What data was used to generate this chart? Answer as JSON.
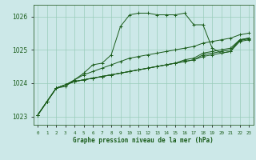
{
  "title": "Graphe pression niveau de la mer (hPa)",
  "xlabel_hours": [
    0,
    1,
    2,
    3,
    4,
    5,
    6,
    7,
    8,
    9,
    10,
    11,
    12,
    13,
    14,
    15,
    16,
    17,
    18,
    19,
    20,
    21,
    22,
    23
  ],
  "ylim": [
    1022.75,
    1026.35
  ],
  "yticks": [
    1023,
    1024,
    1025,
    1026
  ],
  "background_color": "#cce8e8",
  "grid_color": "#99ccbb",
  "line_color": "#1a5c1a",
  "spine_color": "#336633",
  "series": [
    [
      1023.05,
      1023.45,
      1023.85,
      1023.9,
      1024.1,
      1024.3,
      1024.55,
      1024.6,
      1024.85,
      1025.7,
      1026.05,
      1026.1,
      1026.1,
      1026.05,
      1026.05,
      1026.05,
      1026.1,
      1025.75,
      1025.75,
      1025.05,
      1024.9,
      1024.95,
      1025.3,
      1025.35
    ],
    [
      1023.05,
      1023.45,
      1023.85,
      1023.95,
      1024.05,
      1024.1,
      1024.15,
      1024.2,
      1024.25,
      1024.3,
      1024.35,
      1024.4,
      1024.45,
      1024.5,
      1024.55,
      1024.6,
      1024.65,
      1024.7,
      1024.8,
      1024.85,
      1024.9,
      1024.95,
      1025.25,
      1025.3
    ],
    [
      1023.05,
      1023.45,
      1023.85,
      1023.95,
      1024.05,
      1024.1,
      1024.15,
      1024.2,
      1024.25,
      1024.3,
      1024.35,
      1024.4,
      1024.45,
      1024.5,
      1024.55,
      1024.6,
      1024.65,
      1024.7,
      1024.85,
      1024.9,
      1024.95,
      1025.0,
      1025.28,
      1025.33
    ],
    [
      1023.05,
      1023.45,
      1023.85,
      1023.95,
      1024.05,
      1024.1,
      1024.15,
      1024.2,
      1024.25,
      1024.3,
      1024.35,
      1024.4,
      1024.45,
      1024.5,
      1024.55,
      1024.6,
      1024.7,
      1024.75,
      1024.9,
      1024.95,
      1025.0,
      1025.05,
      1025.3,
      1025.35
    ],
    [
      1023.05,
      1023.45,
      1023.85,
      1023.95,
      1024.1,
      1024.25,
      1024.35,
      1024.45,
      1024.55,
      1024.65,
      1024.75,
      1024.8,
      1024.85,
      1024.9,
      1024.95,
      1025.0,
      1025.05,
      1025.1,
      1025.2,
      1025.25,
      1025.3,
      1025.35,
      1025.45,
      1025.5
    ]
  ]
}
